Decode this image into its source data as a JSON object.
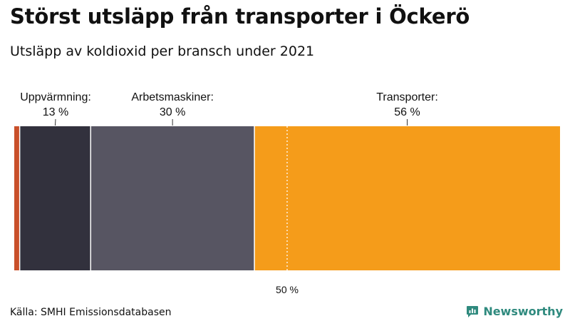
{
  "title": "Störst utsläpp från transporter i Öckerö",
  "subtitle": "Utsläpp av koldioxid per bransch under 2021",
  "source": "Källa: SMHI Emissionsdatabasen",
  "brand": {
    "name": "Newsworthy",
    "icon": "newsworthy-logo-icon",
    "color": "#2f8a7e"
  },
  "chart_data": {
    "type": "bar",
    "orientation": "horizontal-stacked-100",
    "xlim": [
      0,
      100
    ],
    "segments": [
      {
        "value": 1,
        "color": "#c9502a",
        "label": "",
        "value_label": ""
      },
      {
        "value": 13,
        "color": "#32313d",
        "label": "Uppvärmning:",
        "value_label": "13 %"
      },
      {
        "value": 30,
        "color": "#575562",
        "label": "Arbetsmaskiner:",
        "value_label": "30 %"
      },
      {
        "value": 56,
        "color": "#f59c1a",
        "label": "Transporter:",
        "value_label": "56 %"
      }
    ],
    "reference_line": {
      "value": 50,
      "label": "50 %"
    }
  }
}
